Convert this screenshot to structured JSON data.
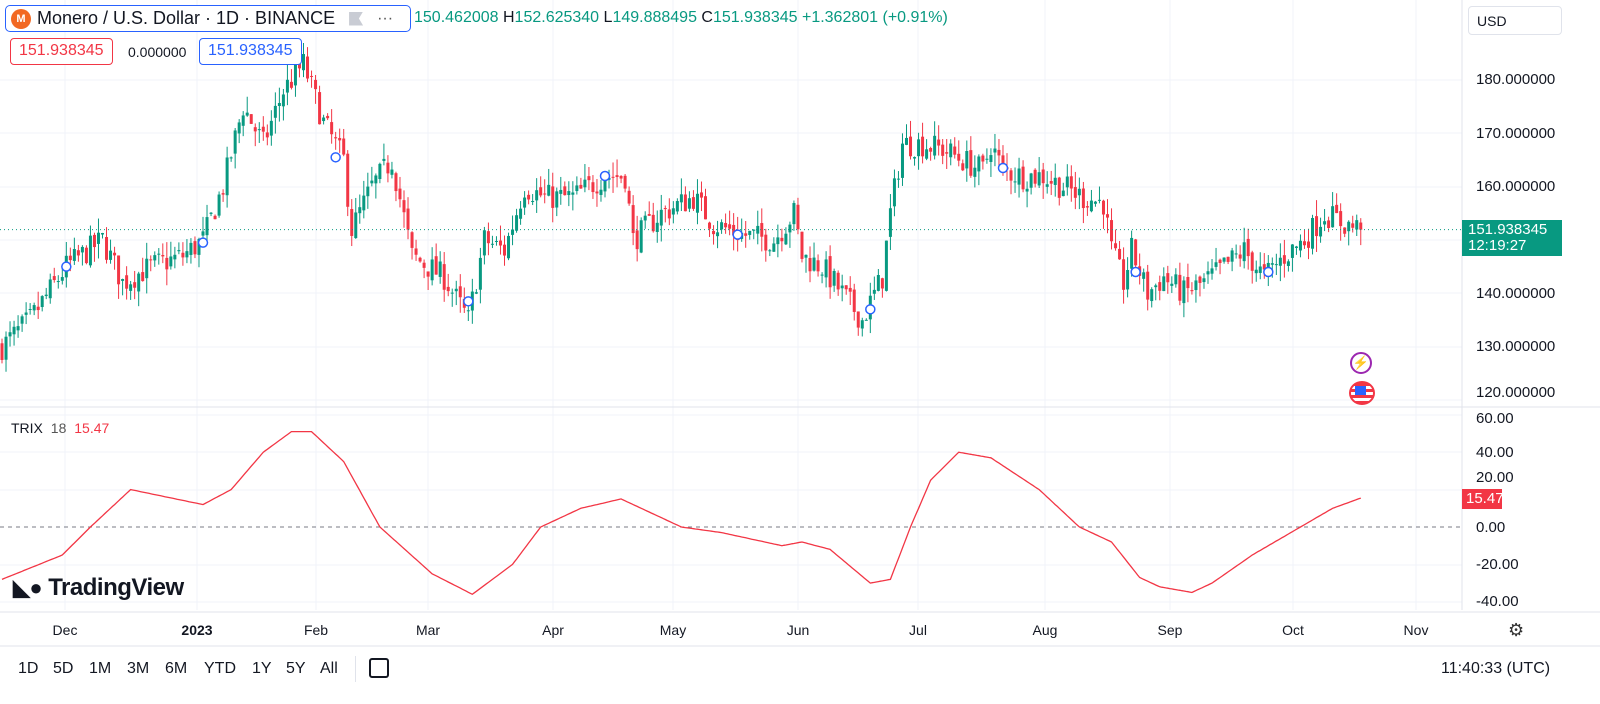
{
  "header": {
    "symbol": "Monero / U.S. Dollar · 1D · BINANCE",
    "logo_text": "M",
    "open": "150.462008",
    "high_label": "H",
    "high": "152.625340",
    "low_label": "L",
    "low": "149.888495",
    "close_label": "C",
    "close": "151.938345",
    "change": "+1.362801 (+0.91%)",
    "more": "···"
  },
  "price_boxes": {
    "sell": "151.938345",
    "spread": "0.000000",
    "buy": "151.938345"
  },
  "currency": "USD",
  "price_axis": [
    "180.000000",
    "170.000000",
    "160.000000",
    "140.000000",
    "130.000000",
    "120.000000"
  ],
  "last_price": {
    "value": "151.938345",
    "countdown": "12:19:27"
  },
  "indicator": {
    "name": "TRIX",
    "length": "18",
    "value": "15.47",
    "axis": [
      "60.00",
      "40.00",
      "20.00",
      "0.00",
      "-20.00",
      "-40.00"
    ]
  },
  "time_axis": [
    "Dec",
    "2023",
    "Feb",
    "Mar",
    "Apr",
    "May",
    "Jun",
    "Jul",
    "Aug",
    "Sep",
    "Oct",
    "Nov"
  ],
  "ranges": [
    "1D",
    "5D",
    "1M",
    "3M",
    "6M",
    "YTD",
    "1Y",
    "5Y",
    "All"
  ],
  "clock": "11:40:33 (UTC)",
  "brand": "TradingView",
  "colors": {
    "up": "#089981",
    "down": "#f23645",
    "trix": "#f23645",
    "accent": "#2962ff"
  },
  "chart_data": {
    "type": "candlestick",
    "title": "Monero / U.S. Dollar · 1D · BINANCE",
    "x_range": [
      "2022-11-15",
      "2023-10-18"
    ],
    "ylim": [
      118,
      186
    ],
    "close_anchors_by_day": [
      [
        0,
        130
      ],
      [
        7,
        135
      ],
      [
        16,
        145
      ],
      [
        25,
        150
      ],
      [
        30,
        142
      ],
      [
        37,
        145
      ],
      [
        45,
        147
      ],
      [
        50,
        150
      ],
      [
        55,
        160
      ],
      [
        60,
        175
      ],
      [
        65,
        168
      ],
      [
        70,
        178
      ],
      [
        75,
        183
      ],
      [
        80,
        172
      ],
      [
        85,
        165
      ],
      [
        87,
        152
      ],
      [
        92,
        160
      ],
      [
        97,
        165
      ],
      [
        102,
        147
      ],
      [
        110,
        143
      ],
      [
        116,
        135
      ],
      [
        120,
        150
      ],
      [
        125,
        148
      ],
      [
        130,
        160
      ],
      [
        135,
        158
      ],
      [
        142,
        158
      ],
      [
        150,
        162
      ],
      [
        155,
        162
      ],
      [
        157,
        150
      ],
      [
        164,
        155
      ],
      [
        172,
        158
      ],
      [
        177,
        153
      ],
      [
        184,
        151
      ],
      [
        192,
        150
      ],
      [
        197,
        155
      ],
      [
        199,
        147
      ],
      [
        204,
        145
      ],
      [
        209,
        140
      ],
      [
        214,
        135
      ],
      [
        219,
        143
      ],
      [
        221,
        155
      ],
      [
        224,
        168
      ],
      [
        229,
        168
      ],
      [
        234,
        167
      ],
      [
        239,
        165
      ],
      [
        244,
        163
      ],
      [
        246,
        168
      ],
      [
        249,
        163
      ],
      [
        254,
        162
      ],
      [
        259,
        162
      ],
      [
        264,
        160
      ],
      [
        269,
        158
      ],
      [
        274,
        157
      ],
      [
        276,
        148
      ],
      [
        279,
        142
      ],
      [
        281,
        148
      ],
      [
        285,
        140
      ],
      [
        289,
        143
      ],
      [
        294,
        140
      ],
      [
        299,
        142
      ],
      [
        304,
        145
      ],
      [
        309,
        148
      ],
      [
        314,
        143
      ],
      [
        319,
        147
      ],
      [
        324,
        150
      ],
      [
        329,
        155
      ],
      [
        334,
        153
      ],
      [
        338,
        152
      ]
    ],
    "trix_anchors_by_day": [
      [
        0,
        -28
      ],
      [
        15,
        -15
      ],
      [
        22,
        0
      ],
      [
        32,
        20
      ],
      [
        50,
        12
      ],
      [
        57,
        20
      ],
      [
        65,
        40
      ],
      [
        72,
        51
      ],
      [
        77,
        51
      ],
      [
        85,
        35
      ],
      [
        94,
        0
      ],
      [
        107,
        -25
      ],
      [
        117,
        -36
      ],
      [
        127,
        -20
      ],
      [
        134,
        0
      ],
      [
        144,
        10
      ],
      [
        154,
        15
      ],
      [
        169,
        0
      ],
      [
        179,
        -3
      ],
      [
        194,
        -10
      ],
      [
        199,
        -8
      ],
      [
        206,
        -12
      ],
      [
        216,
        -30
      ],
      [
        221,
        -28
      ],
      [
        226,
        0
      ],
      [
        231,
        25
      ],
      [
        238,
        40
      ],
      [
        246,
        37
      ],
      [
        258,
        20
      ],
      [
        268,
        0
      ],
      [
        276,
        -8
      ],
      [
        283,
        -27
      ],
      [
        288,
        -32
      ],
      [
        296,
        -35
      ],
      [
        301,
        -30
      ],
      [
        311,
        -15
      ],
      [
        323,
        0
      ],
      [
        331,
        10
      ],
      [
        338,
        15.47
      ]
    ]
  }
}
